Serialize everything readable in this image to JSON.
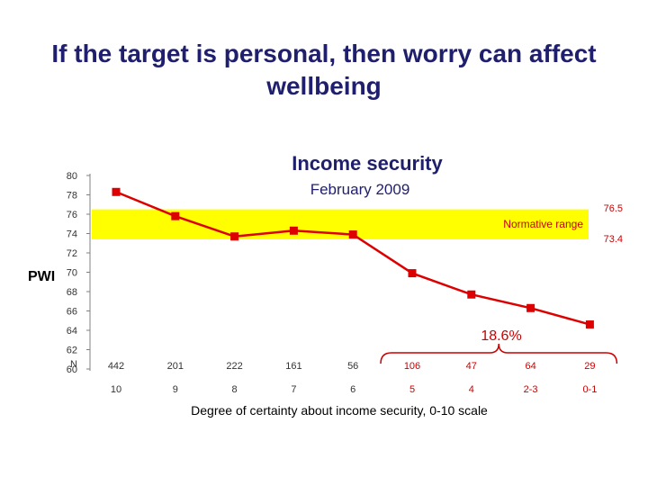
{
  "slide": {
    "title_line1": "If the target is personal, then worry can affect",
    "title_line2": "wellbeing"
  },
  "chart_data": {
    "type": "line",
    "title": "Income security",
    "subtitle": "February 2009",
    "ylabel": "PWI",
    "xlabel": "Degree of certainty about income security, 0-10 scale",
    "ylim": [
      60,
      80
    ],
    "yticks": [
      "80",
      "78",
      "76",
      "74",
      "72",
      "70",
      "68",
      "66",
      "64",
      "62",
      "60"
    ],
    "categories": [
      "10",
      "9",
      "8",
      "7",
      "6",
      "5",
      "4",
      "2-3",
      "0-1"
    ],
    "values": [
      78.3,
      75.8,
      73.7,
      74.3,
      73.9,
      69.9,
      67.7,
      66.3,
      64.6
    ],
    "n_label": "N",
    "n_values": [
      "442",
      "201",
      "222",
      "161",
      "56",
      "106",
      "47",
      "64",
      "29"
    ],
    "highlight_from_index": 5,
    "normative_range": {
      "low": 73.4,
      "high": 76.5,
      "low_label": "73.4",
      "high_label": "76.5",
      "label": "Normative range"
    },
    "bracket_label": "18.6%",
    "grid": false,
    "colors": {
      "line": "#dd0000",
      "band": "#ffff00",
      "highlight_text": "#cc0000",
      "title": "#1f1f6e"
    }
  }
}
